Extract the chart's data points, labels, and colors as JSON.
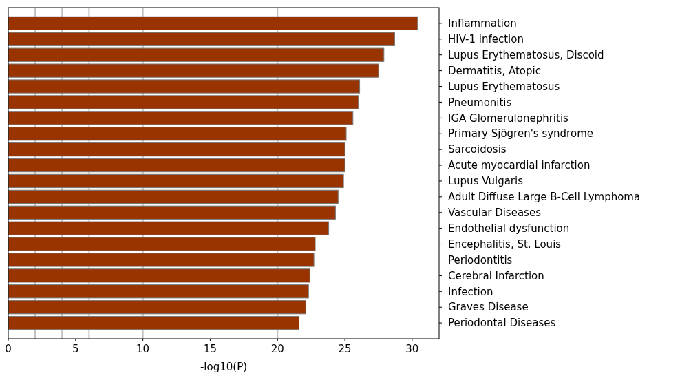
{
  "chart_data": {
    "type": "bar",
    "orientation": "horizontal",
    "xlabel": "-log10(P)",
    "categories": [
      "Inflammation",
      "HIV-1 infection",
      "Lupus Erythematosus, Discoid",
      "Dermatitis, Atopic",
      "Lupus Erythematosus",
      "Pneumonitis",
      "IGA Glomerulonephritis",
      "Primary Sjögren's syndrome",
      "Sarcoidosis",
      "Acute myocardial infarction",
      "Lupus Vulgaris",
      "Adult Diffuse Large B-Cell Lymphoma",
      "Vascular Diseases",
      "Endothelial dysfunction",
      "Encephalitis, St. Louis",
      "Periodontitis",
      "Cerebral Infarction",
      "Infection",
      "Graves Disease",
      "Periodontal Diseases"
    ],
    "values": [
      30.4,
      28.7,
      27.9,
      27.5,
      26.1,
      26.0,
      25.6,
      25.1,
      25.0,
      25.0,
      24.9,
      24.5,
      24.3,
      23.8,
      22.8,
      22.7,
      22.4,
      22.3,
      22.1,
      21.6
    ],
    "color": "#993300",
    "xlim": [
      0,
      32
    ],
    "xticks": [
      0,
      5,
      10,
      15,
      20,
      25,
      30
    ],
    "ref_lines": [
      {
        "axis": "x",
        "value": 2,
        "color": "#c0c0c0"
      },
      {
        "axis": "x",
        "value": 4,
        "color": "#c0c0c0"
      },
      {
        "axis": "x",
        "value": 6,
        "color": "#c0c0c0"
      },
      {
        "axis": "x",
        "value": 10,
        "color": "#c0c0c0"
      },
      {
        "axis": "x",
        "value": 20,
        "color": "#c0c0c0"
      }
    ]
  }
}
